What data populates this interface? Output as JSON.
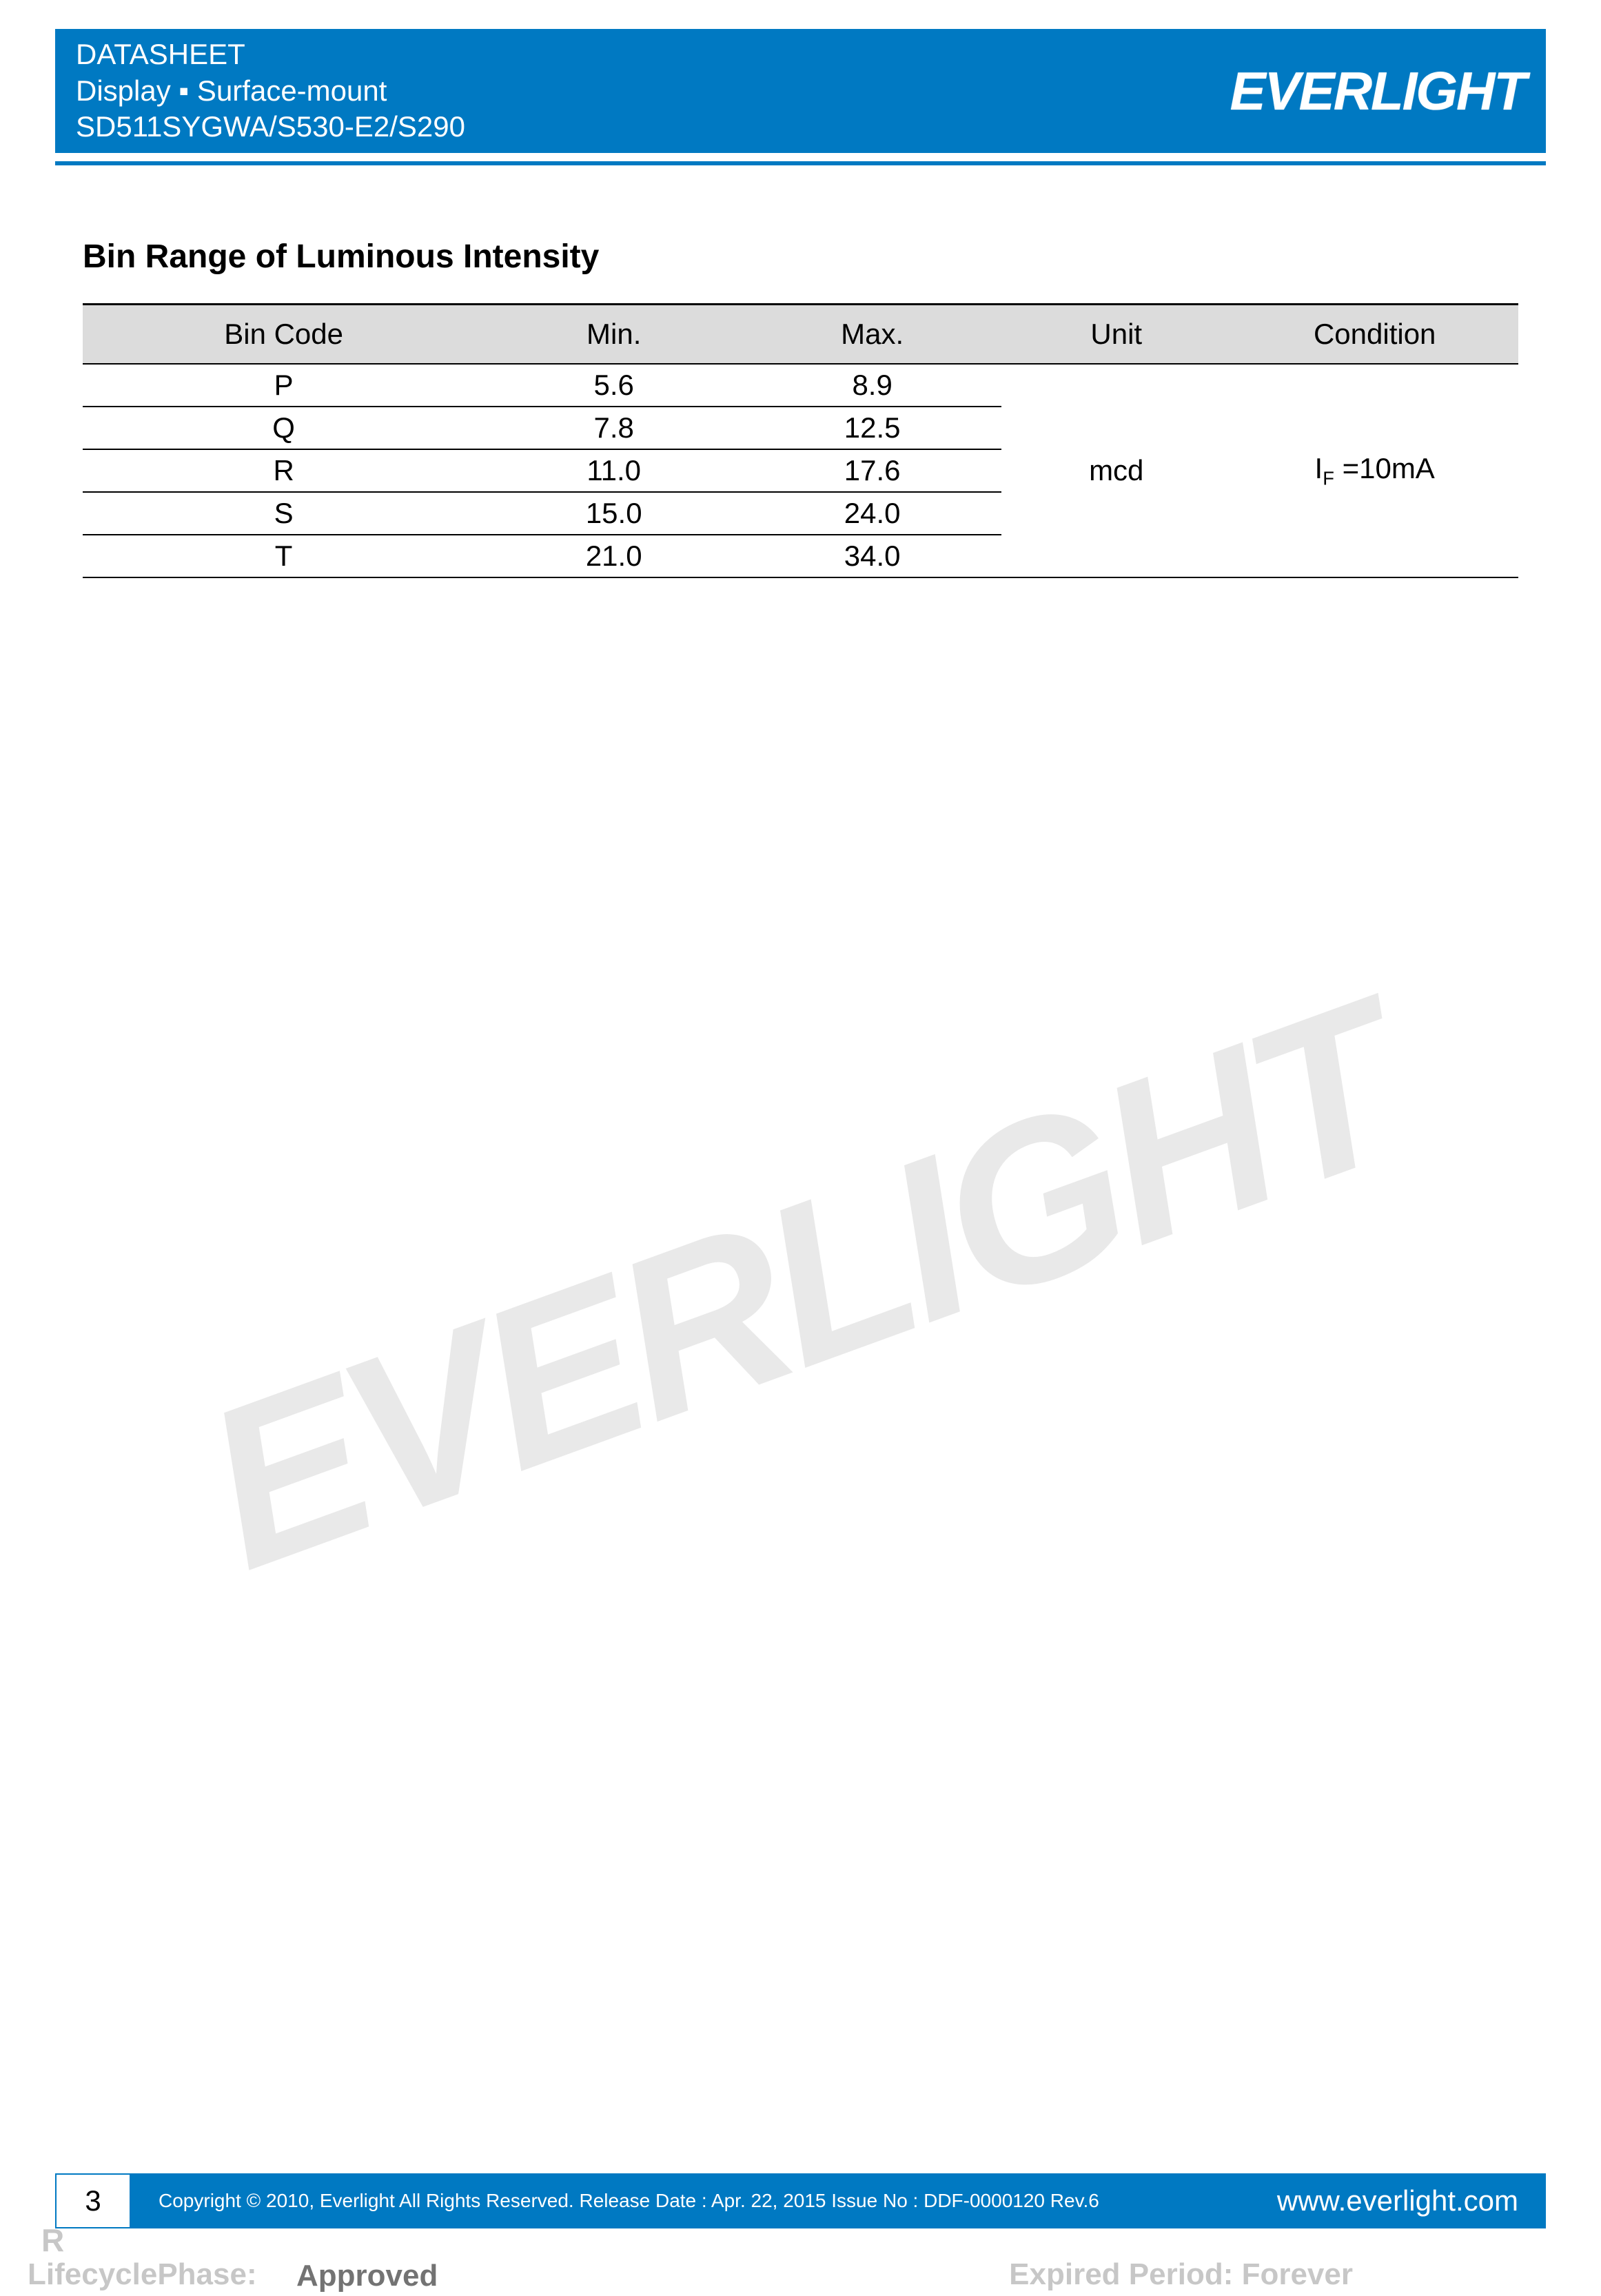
{
  "header": {
    "line1": "DATASHEET",
    "line2": "Display ▪ Surface-mount",
    "line3": "SD511SYGWA/S530-E2/S290",
    "logo_text": "EVERLIGHT",
    "brand_color": "#0079c2",
    "text_color": "#ffffff"
  },
  "section": {
    "title": "Bin Range of Luminous Intensity"
  },
  "table": {
    "header_bg": "#dcdcdc",
    "border_color": "#000000",
    "columns": {
      "bin": "Bin Code",
      "min": "Min.",
      "max": "Max.",
      "unit": "Unit",
      "cond": "Condition"
    },
    "rows": [
      {
        "bin": "P",
        "min": "5.6",
        "max": "8.9"
      },
      {
        "bin": "Q",
        "min": "7.8",
        "max": "12.5"
      },
      {
        "bin": "R",
        "min": "11.0",
        "max": "17.6"
      },
      {
        "bin": "S",
        "min": "15.0",
        "max": "24.0"
      },
      {
        "bin": "T",
        "min": "21.0",
        "max": "34.0"
      }
    ],
    "unit": "mcd",
    "condition_prefix": "I",
    "condition_sub": "F",
    "condition_suffix": " =10mA"
  },
  "watermark": {
    "text": "EVERLIGHT",
    "color": "#e6e6e6"
  },
  "footer": {
    "page_number": "3",
    "copyright": "Copyright © 2010, Everlight All Rights Reserved. Release Date : Apr. 22, 2015 Issue No : DDF-0000120 Rev.6",
    "url": "www.everlight.com",
    "band_color": "#0079c2"
  },
  "stamp": {
    "r": "R",
    "lifecycle_label": "LifecyclePhase:",
    "approved": "Approved",
    "expired": "Expired Period: Forever"
  }
}
